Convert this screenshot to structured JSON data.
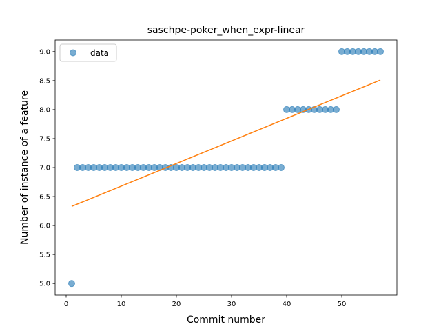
{
  "chart_data": {
    "type": "scatter",
    "title": "saschpe-poker_when_expr-linear",
    "xlabel": "Commit number",
    "ylabel": "Number of instance of a feature",
    "xlim": [
      -2,
      60
    ],
    "ylim": [
      4.8,
      9.2
    ],
    "xticks": [
      0,
      10,
      20,
      30,
      40,
      50
    ],
    "xtick_labels": [
      "0",
      "10",
      "20",
      "30",
      "40",
      "50"
    ],
    "yticks": [
      5.0,
      5.5,
      6.0,
      6.5,
      7.0,
      7.5,
      8.0,
      8.5,
      9.0
    ],
    "ytick_labels": [
      "5.0",
      "5.5",
      "6.0",
      "6.5",
      "7.0",
      "7.5",
      "8.0",
      "8.5",
      "9.0"
    ],
    "legend_position": "top-left",
    "grid": false,
    "series": [
      {
        "name": "data",
        "kind": "scatter",
        "color": "#1f77b4",
        "x": [
          1,
          2,
          3,
          4,
          5,
          6,
          7,
          8,
          9,
          10,
          11,
          12,
          13,
          14,
          15,
          16,
          17,
          18,
          19,
          20,
          21,
          22,
          23,
          24,
          25,
          26,
          27,
          28,
          29,
          30,
          31,
          32,
          33,
          34,
          35,
          36,
          37,
          38,
          39,
          40,
          41,
          42,
          43,
          44,
          45,
          46,
          47,
          48,
          49,
          50,
          51,
          52,
          53,
          54,
          55,
          56,
          57
        ],
        "y": [
          5,
          7,
          7,
          7,
          7,
          7,
          7,
          7,
          7,
          7,
          7,
          7,
          7,
          7,
          7,
          7,
          7,
          7,
          7,
          7,
          7,
          7,
          7,
          7,
          7,
          7,
          7,
          7,
          7,
          7,
          7,
          7,
          7,
          7,
          7,
          7,
          7,
          7,
          7,
          8,
          8,
          8,
          8,
          8,
          8,
          8,
          8,
          8,
          8,
          9,
          9,
          9,
          9,
          9,
          9,
          9,
          9
        ]
      },
      {
        "kind": "line",
        "color": "#ff7f0e",
        "x": [
          1,
          57
        ],
        "y": [
          6.33,
          8.51
        ]
      }
    ]
  }
}
